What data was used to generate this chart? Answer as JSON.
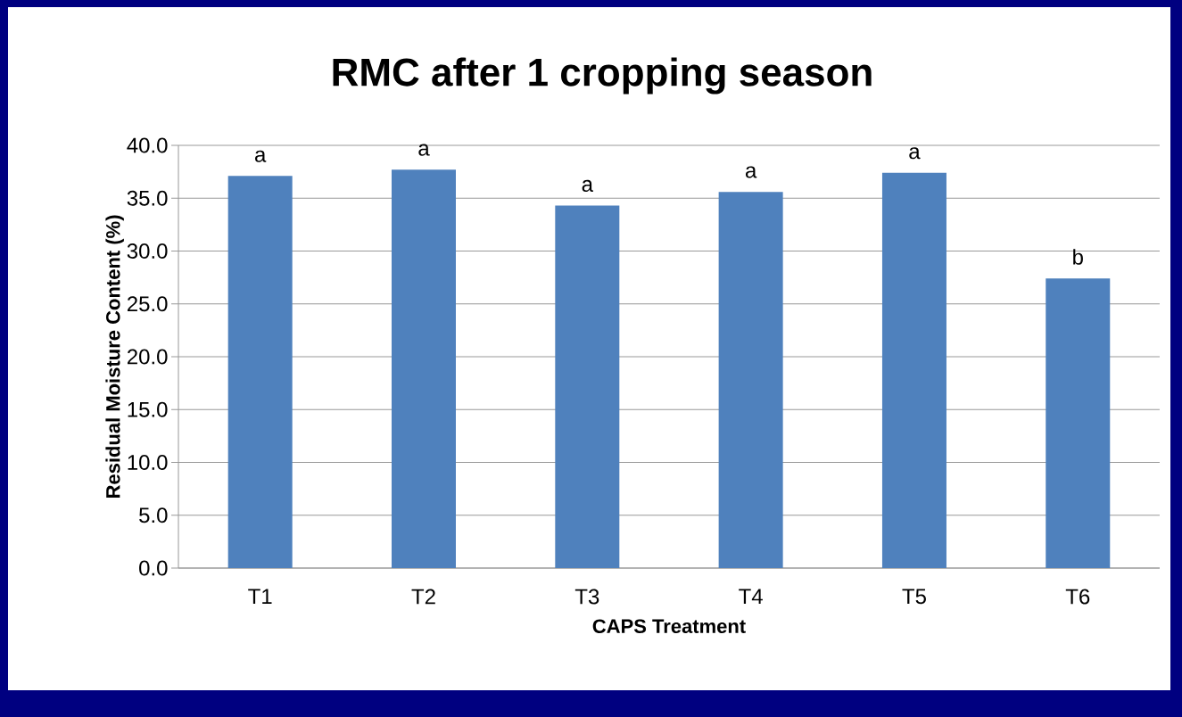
{
  "chart_data": {
    "type": "bar",
    "title": "RMC after 1 cropping season",
    "xlabel": "CAPS Treatment",
    "ylabel": "Residual Moisture Content (%)",
    "categories": [
      "T1",
      "T2",
      "T3",
      "T4",
      "T5",
      "T6"
    ],
    "values": [
      37.1,
      37.7,
      34.3,
      35.6,
      37.4,
      27.4
    ],
    "color": "#4f81bd",
    "ylim": [
      0,
      40
    ],
    "yticks": [
      {
        "value": 0,
        "label": "0.0"
      },
      {
        "value": 5,
        "label": "5.0"
      },
      {
        "value": 10,
        "label": "10.0"
      },
      {
        "value": 15,
        "label": "15.0"
      },
      {
        "value": 20,
        "label": "20.0"
      },
      {
        "value": 25,
        "label": "25.0"
      },
      {
        "value": 30,
        "label": "30.0"
      },
      {
        "value": 35,
        "label": "35.0"
      },
      {
        "value": 40,
        "label": "40.0"
      }
    ],
    "grid": "y",
    "annotations": [
      "a",
      "a",
      "a",
      "a",
      "a",
      "b"
    ]
  }
}
